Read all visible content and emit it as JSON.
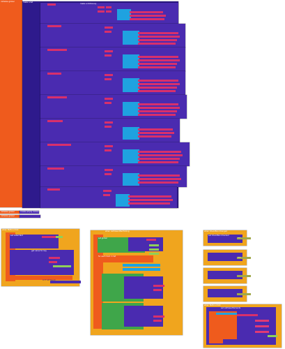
{
  "canvas": {
    "title": "Blocks editor workspace"
  },
  "main_block": {
    "label": "initialize global",
    "dict_label": "make a dictionary",
    "pair_label": "key",
    "value_label": "value",
    "list_label": "make a list"
  },
  "blocks": {
    "left_bottom_a": "initialize global",
    "left_bottom_b": "initialize global",
    "empty_dict": "create empty dictionary",
    "ev1_header": "when Button.Click",
    "ev1_row1": "set Label.Text",
    "ev1_row2": "get value for key",
    "ev1_row3": "or if not found",
    "ev2_header": "when ListView.AfterPicking",
    "ev2_row1": "set global",
    "ev2_row2": "for each item in list",
    "ev3_header": "when CheckBox.Changed",
    "ev3_row1": "set CheckBox.Checked",
    "ev4_header": "when Button.Click",
    "ev4_row1": "set ListView.Elements",
    "true_label": "true",
    "false_label": "false"
  },
  "colors": {
    "orange": "#ef5b1d",
    "indigo": "#2e1a8c",
    "purple": "#4a2bb0",
    "pink": "#d8306b",
    "cyan": "#1fa2e0",
    "gold": "#f0a51e",
    "green": "#3fa64a"
  }
}
